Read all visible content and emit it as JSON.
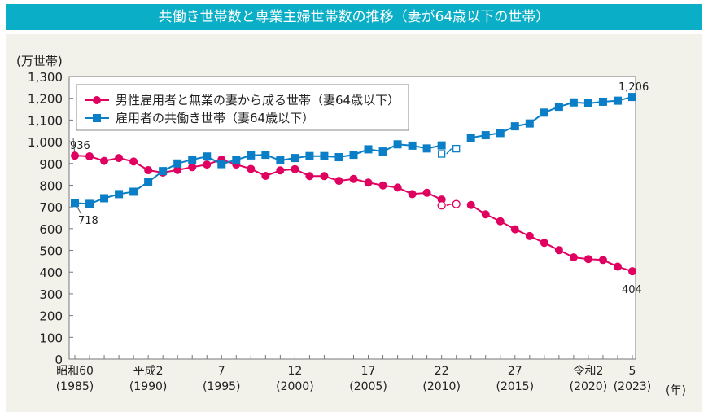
{
  "title": "共働き世帯数と専業主婦世帯数の推移（妻が64歳以下の世帯）",
  "chart_data": {
    "type": "line",
    "ylabel": "(万世帯)",
    "xunit": "(年)",
    "ylim": [
      0,
      1300
    ],
    "yticks": [
      "0",
      "100",
      "200",
      "300",
      "400",
      "500",
      "600",
      "700",
      "800",
      "900",
      "1,000",
      "1,100",
      "1,200",
      "1,300"
    ],
    "xticks": [
      {
        "year": 1985,
        "top": "昭和60",
        "bottom": "(1985)"
      },
      {
        "year": 1990,
        "top": "平成2",
        "bottom": "(1990)"
      },
      {
        "year": 1995,
        "top": "7",
        "bottom": "(1995)"
      },
      {
        "year": 2000,
        "top": "12",
        "bottom": "(2000)"
      },
      {
        "year": 2005,
        "top": "17",
        "bottom": "(2005)"
      },
      {
        "year": 2010,
        "top": "22",
        "bottom": "(2010)"
      },
      {
        "year": 2015,
        "top": "27",
        "bottom": "(2015)"
      },
      {
        "year": 2020,
        "top": "令和2",
        "bottom": "(2020)"
      },
      {
        "year": 2023,
        "top": "5",
        "bottom": "(2023)"
      }
    ],
    "x": [
      1985,
      1986,
      1987,
      1988,
      1989,
      1990,
      1991,
      1992,
      1993,
      1994,
      1995,
      1996,
      1997,
      1998,
      1999,
      2000,
      2001,
      2002,
      2003,
      2004,
      2005,
      2006,
      2007,
      2008,
      2009,
      2010,
      2011,
      2012,
      2013,
      2014,
      2015,
      2016,
      2017,
      2018,
      2019,
      2020,
      2021,
      2022,
      2023
    ],
    "series": [
      {
        "name": "男性雇用者と無業の妻から成る世帯（妻64歳以下）",
        "color": "#e0005f",
        "marker": "circle",
        "values": [
          936,
          933,
          912,
          925,
          909,
          869,
          858,
          870,
          883,
          895,
          918,
          895,
          875,
          843,
          868,
          874,
          842,
          842,
          820,
          829,
          812,
          799,
          789,
          759,
          765,
          734,
          null,
          709,
          666,
          634,
          597,
          566,
          535,
          501,
          468,
          460,
          456,
          425,
          404
        ],
        "reference_values": {
          "2010": 707,
          "2011": 713
        }
      },
      {
        "name": "雇用者の共働き世帯（妻64歳以下）",
        "color": "#0a7fc7",
        "marker": "square",
        "values": [
          718,
          714,
          740,
          759,
          770,
          815,
          865,
          900,
          918,
          932,
          897,
          917,
          937,
          940,
          914,
          925,
          934,
          934,
          929,
          940,
          965,
          955,
          988,
          982,
          969,
          983,
          null,
          1018,
          1030,
          1040,
          1071,
          1084,
          1134,
          1161,
          1181,
          1177,
          1184,
          1189,
          1206
        ],
        "reference_values": {
          "2010": 944,
          "2011": 968
        }
      }
    ],
    "annotations": {
      "red_start": "936",
      "red_end": "404",
      "blue_start": "718",
      "blue_end": "1,206"
    },
    "legend": "top-left",
    "grid": false
  }
}
